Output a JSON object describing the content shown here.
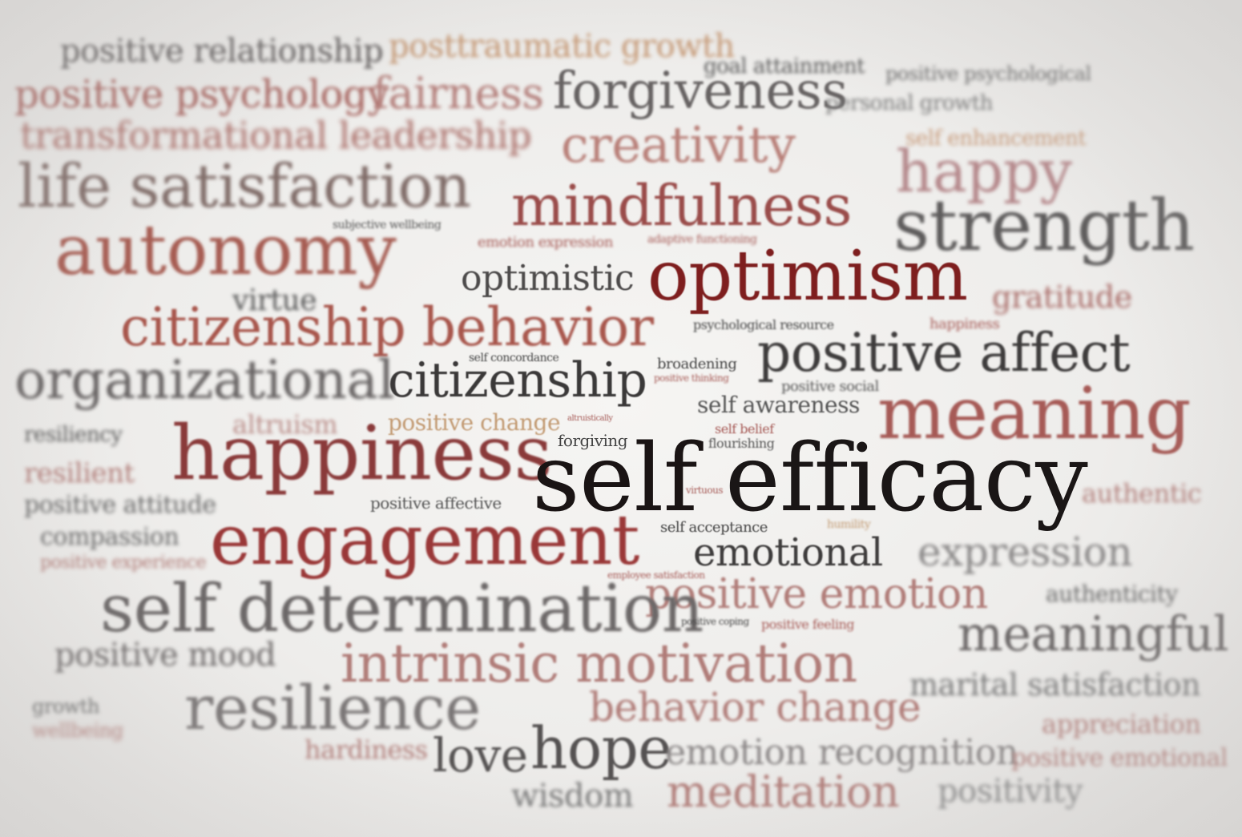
{
  "colors": {
    "dark": "#141212",
    "gray": "#4a4848",
    "red": "#7a2424",
    "rose": "#a05a56",
    "tan": "#b88a62"
  },
  "words": {
    "w01": "positive relationship",
    "w02": "posttraumatic growth",
    "w03": "goal attainment",
    "w04": "positive psychological",
    "w05": "positive psychology",
    "w06": "fairness",
    "w07": "forgiveness",
    "w08": "personal growth",
    "w09": "transformational leadership",
    "w10": "creativity",
    "w11": "self enhancement",
    "w12": "life satisfaction",
    "w13": "happy",
    "w14": "mindfulness",
    "w15": "strength",
    "w16": "autonomy",
    "w17": "emotion expression",
    "w18": "subjective wellbeing",
    "w19": "optimistic",
    "w20": "optimism",
    "w21": "virtue",
    "w22": "gratitude",
    "w23": "citizenship behavior",
    "w24": "psychological resource",
    "w25": "positive affect",
    "w26": "organizational",
    "w27": "citizenship",
    "w28": "self concordance",
    "w29": "broadening",
    "w30": "positive social",
    "w31": "self awareness",
    "w32": "meaning",
    "w33": "altruism",
    "w34": "positive change",
    "w35": "altruistically",
    "w36": "self belief",
    "w37": "forgiving",
    "w38": "flourishing",
    "w39": "happiness",
    "w40": "self",
    "w41": "efficacy",
    "w42": "resiliency",
    "w43": "resilient",
    "w44": "positive attitude",
    "w45": "positive affective",
    "w46": "virtuous",
    "w47": "authentic",
    "w48": "compassion",
    "w49": "engagement",
    "w50": "self acceptance",
    "w51": "humility",
    "w52": "emotional",
    "w53": "expression",
    "w54": "positive experience",
    "w55": "self determination",
    "w56": "employee satisfaction",
    "w57": "positive emotion",
    "w58": "authenticity",
    "w59": "positive feeling",
    "w60": "meaningful",
    "w61": "positive mood",
    "w62": "intrinsic motivation",
    "w63": "marital satisfaction",
    "w64": "resilience",
    "w65": "behavior change",
    "w66": "appreciation",
    "w67": "hardiness",
    "w68": "love",
    "w69": "hope",
    "w70": "emotion recognition",
    "w71": "positive emotional",
    "w72": "wisdom",
    "w73": "meditation",
    "w74": "positivity",
    "w75": "positive thinking",
    "w76": "positive coping",
    "w77": "growth",
    "w78": "wellbeing",
    "w79": "happiness",
    "w80": "adaptive functioning"
  }
}
